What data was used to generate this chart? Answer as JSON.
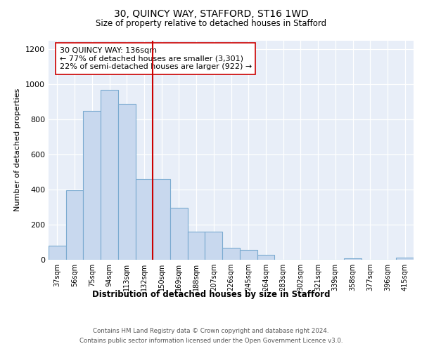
{
  "title": "30, QUINCY WAY, STAFFORD, ST16 1WD",
  "subtitle": "Size of property relative to detached houses in Stafford",
  "xlabel": "Distribution of detached houses by size in Stafford",
  "ylabel": "Number of detached properties",
  "categories": [
    "37sqm",
    "56sqm",
    "75sqm",
    "94sqm",
    "113sqm",
    "132sqm",
    "150sqm",
    "169sqm",
    "188sqm",
    "207sqm",
    "226sqm",
    "245sqm",
    "264sqm",
    "283sqm",
    "302sqm",
    "321sqm",
    "339sqm",
    "358sqm",
    "377sqm",
    "396sqm",
    "415sqm"
  ],
  "values": [
    80,
    395,
    850,
    970,
    890,
    460,
    460,
    295,
    160,
    160,
    70,
    55,
    30,
    0,
    0,
    0,
    0,
    10,
    0,
    0,
    12
  ],
  "bar_color": "#c8d8ee",
  "bar_edge_color": "#7aaad0",
  "vline_x": 5.5,
  "vline_color": "#cc0000",
  "annotation_text": "30 QUINCY WAY: 136sqm\n← 77% of detached houses are smaller (3,301)\n22% of semi-detached houses are larger (922) →",
  "annotation_box_color": "#ffffff",
  "annotation_box_edge_color": "#cc0000",
  "ylim": [
    0,
    1250
  ],
  "yticks": [
    0,
    200,
    400,
    600,
    800,
    1000,
    1200
  ],
  "grid_color": "#d0daea",
  "background_color": "#e8eef8",
  "footer_line1": "Contains HM Land Registry data © Crown copyright and database right 2024.",
  "footer_line2": "Contains public sector information licensed under the Open Government Licence v3.0."
}
